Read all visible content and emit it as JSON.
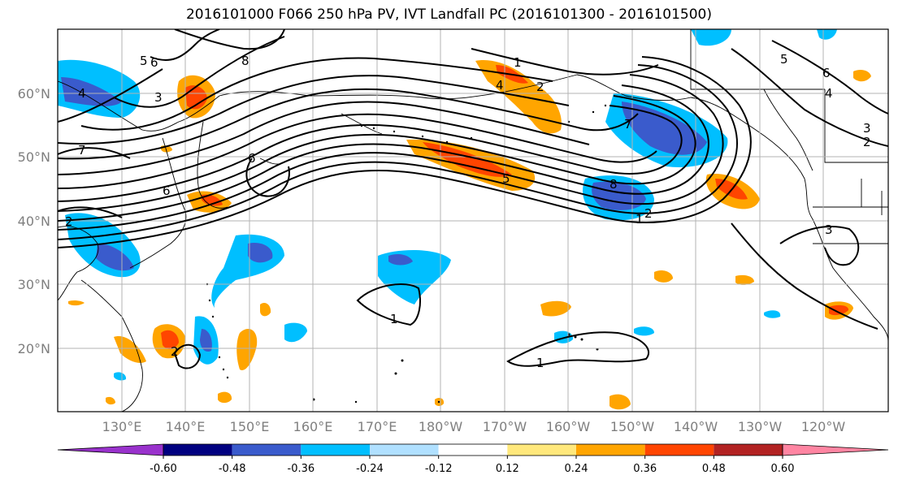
{
  "title": "2016101000 F066 250 hPa PV, IVT Landfall PC (2016101300 - 2016101500)",
  "lat_labels": [
    "60°N",
    "50°N",
    "40°N",
    "30°N",
    "20°N"
  ],
  "lon_labels": [
    "130°E",
    "140°E",
    "150°E",
    "160°E",
    "170°E",
    "180°W",
    "170°W",
    "160°W",
    "150°W",
    "140°W",
    "130°W",
    "120°W"
  ],
  "colorbar": {
    "ticks": [
      "-0.60",
      "-0.48",
      "-0.36",
      "-0.24",
      "-0.12",
      "0.12",
      "0.24",
      "0.36",
      "0.48",
      "0.60"
    ],
    "colors": [
      "#9932cc",
      "#000080",
      "#3a5bcc",
      "#00bfff",
      "#b0e0ff",
      "#ffffff",
      "#ffe87c",
      "#ffa500",
      "#ff4500",
      "#b22222",
      "#ff85a2"
    ]
  },
  "contour_labels": [
    "5",
    "6",
    "8",
    "4",
    "3",
    "1",
    "4",
    "2",
    "5",
    "6",
    "4",
    "7",
    "5",
    "8",
    "2",
    "1",
    "3",
    "6",
    "3",
    "2",
    "7",
    "6",
    "2",
    "1",
    "1",
    "2"
  ]
}
